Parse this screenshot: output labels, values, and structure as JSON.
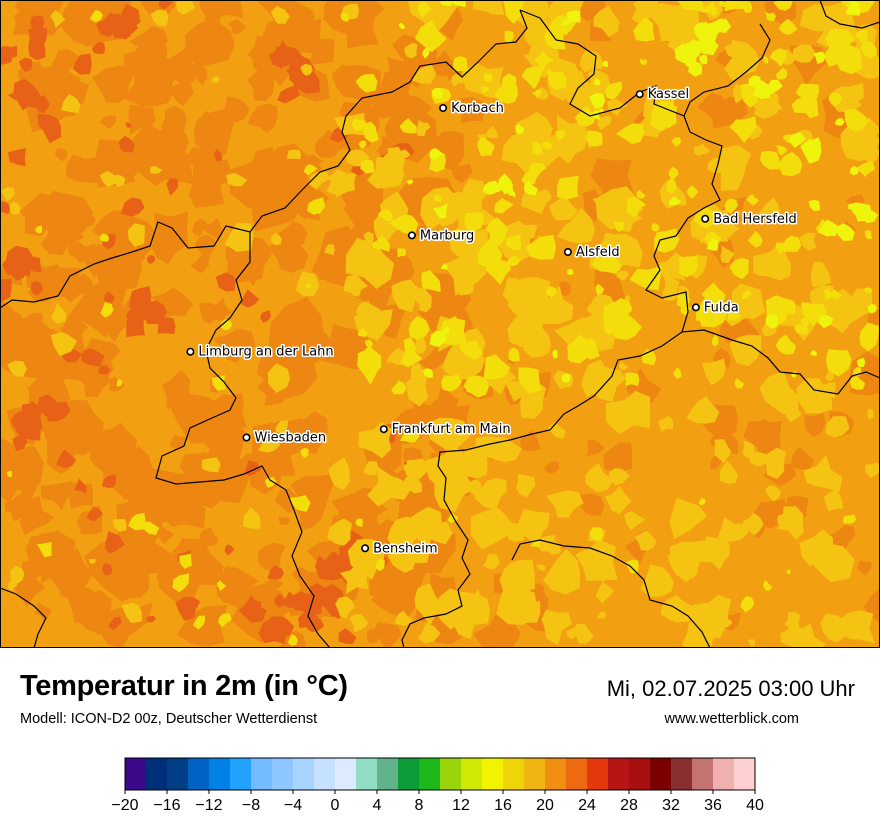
{
  "title": "Temperatur in 2m (in °C)",
  "subtitle": "Modell: ICON-D2 00z, Deutscher Wetterdienst",
  "datetime": "Mi, 02.07.2025 03:00 Uhr",
  "website": "www.wetterblick.com",
  "colors": {
    "map_base": "#f2a012",
    "blob_warm": "#ee8612",
    "blob_hot": "#e76216",
    "blob_mild": "#f5c311",
    "blob_cool": "#f3dd0a",
    "blob_coolest": "#eef40b",
    "border": "#000000"
  },
  "cities": [
    {
      "name": "Kassel",
      "lon": 9.5,
      "lat": 51.32
    },
    {
      "name": "Korbach",
      "lon": 8.87,
      "lat": 51.27
    },
    {
      "name": "Bad Hersfeld",
      "lon": 9.71,
      "lat": 50.87
    },
    {
      "name": "Marburg",
      "lon": 8.77,
      "lat": 50.81
    },
    {
      "name": "Alsfeld",
      "lon": 9.27,
      "lat": 50.75
    },
    {
      "name": "Fulda",
      "lon": 9.68,
      "lat": 50.55
    },
    {
      "name": "Limburg an der Lahn",
      "lon": 8.06,
      "lat": 50.39
    },
    {
      "name": "Frankfurt am Main",
      "lon": 8.68,
      "lat": 50.11
    },
    {
      "name": "Wiesbaden",
      "lon": 8.24,
      "lat": 50.08
    },
    {
      "name": "Bensheim",
      "lon": 8.62,
      "lat": 49.68
    }
  ],
  "legend": {
    "min": -20,
    "max": 40,
    "ticks": [
      "−20",
      "−16",
      "−12",
      "−8",
      "−4",
      "0",
      "4",
      "8",
      "12",
      "16",
      "20",
      "24",
      "28",
      "32",
      "36",
      "40"
    ],
    "colors": [
      "#3a0a8a",
      "#002f7a",
      "#003f86",
      "#0062c2",
      "#0081e6",
      "#22a1ff",
      "#72bcff",
      "#8ec6ff",
      "#a8d4ff",
      "#c6e1ff",
      "#dcebff",
      "#93dcc5",
      "#62b28c",
      "#0c9c38",
      "#1db81a",
      "#9ad50c",
      "#cfe905",
      "#f1f300",
      "#f0d40a",
      "#f1b512",
      "#f08f12",
      "#ee6a12",
      "#e5380c",
      "#b51515",
      "#a81010",
      "#7a0000",
      "#8b3030",
      "#c57272",
      "#f0b0b0",
      "#ffd0d2"
    ]
  }
}
